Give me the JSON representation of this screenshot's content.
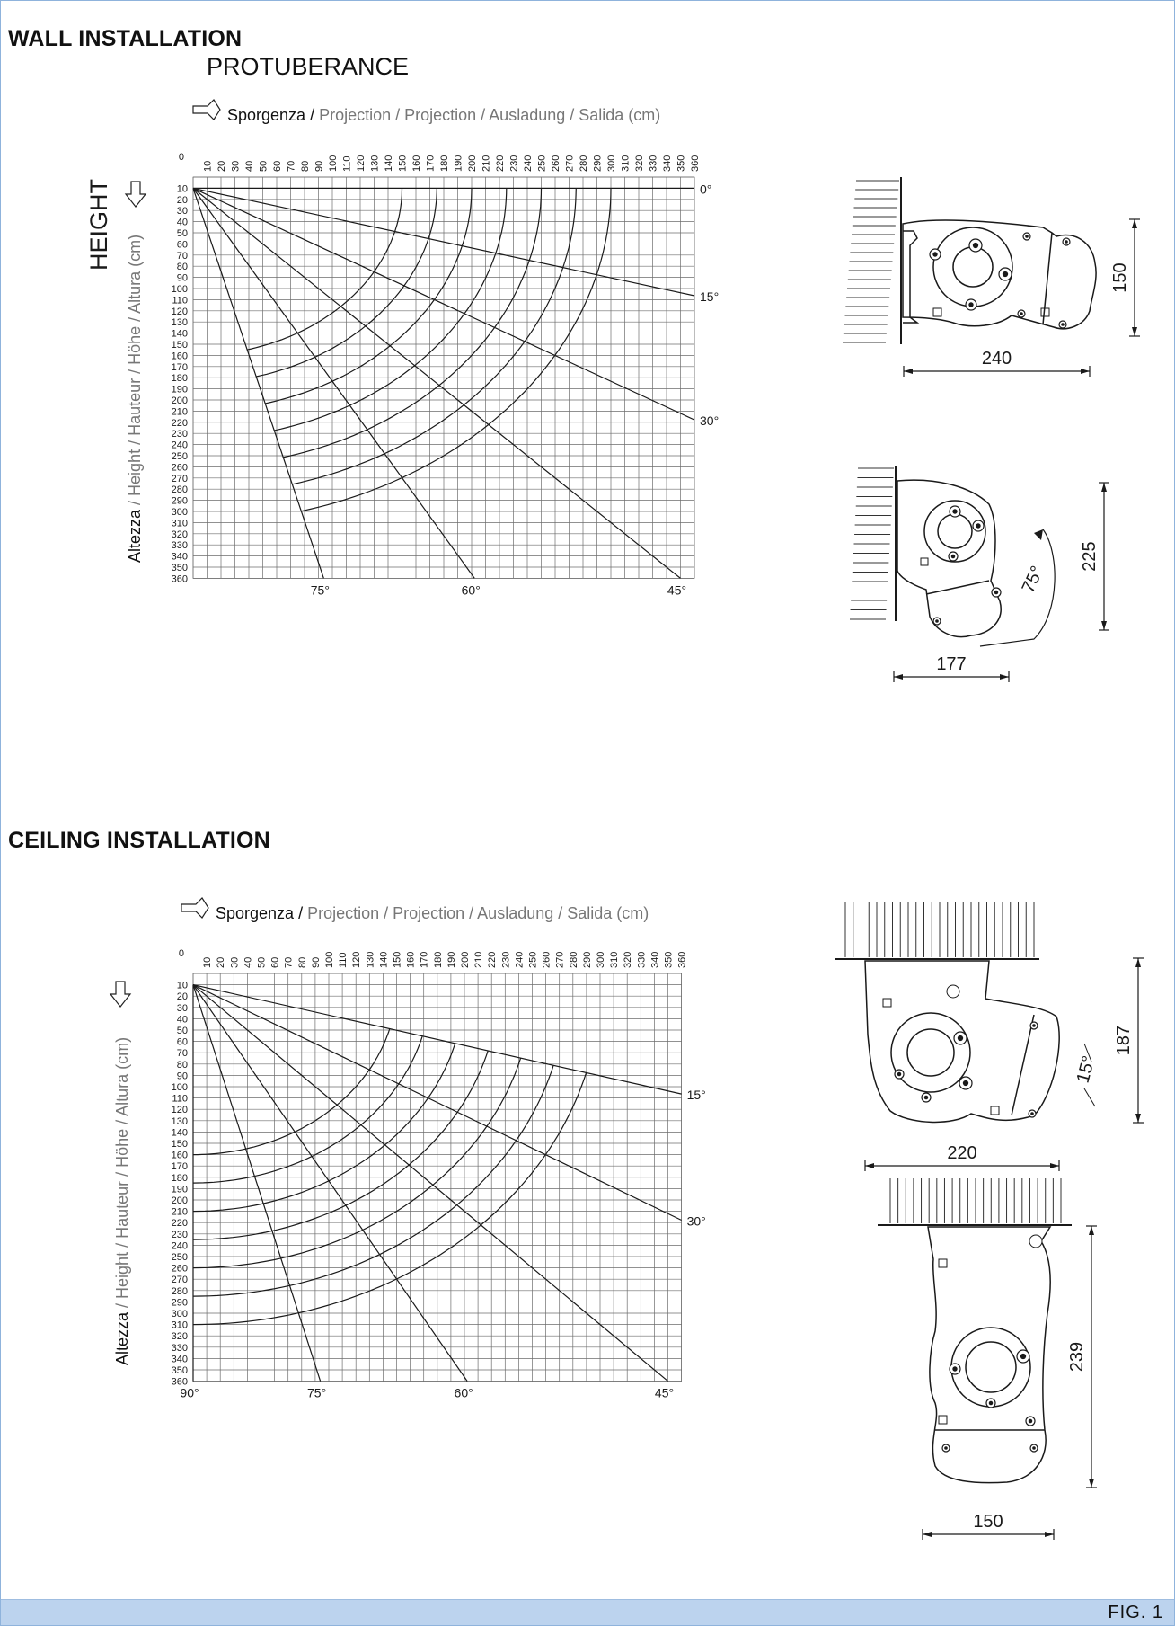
{
  "title": "WALL INSTALLATION",
  "subtitle": "PROTUBERANCE",
  "height_word": "HEIGHT",
  "ceiling_title": "CEILING INSTALLATION",
  "fig_label": "FIG. 1",
  "projection_axis": {
    "lead": "Sporgenza /",
    "rest": " Projection / Projection / Ausladung / Salida (cm)"
  },
  "height_axis": {
    "lead": "Altezza",
    "rest": " / Height / Hauteur / Höhe / Altura (cm)"
  },
  "origin_label": "0",
  "ticks": [
    "10",
    "20",
    "30",
    "40",
    "50",
    "60",
    "70",
    "80",
    "90",
    "100",
    "110",
    "120",
    "130",
    "140",
    "150",
    "160",
    "170",
    "180",
    "190",
    "200",
    "210",
    "220",
    "230",
    "240",
    "250",
    "260",
    "270",
    "280",
    "290",
    "300",
    "310",
    "320",
    "330",
    "340",
    "350",
    "360"
  ],
  "wall_chart": {
    "ray_angles_deg": [
      0,
      15,
      30,
      45,
      60,
      75
    ],
    "ray_labels": [
      "0°",
      "15°",
      "30°",
      "45°",
      "60°",
      "75°"
    ],
    "arc_radii_cm": [
      150,
      175,
      200,
      225,
      250,
      275,
      300
    ],
    "arc_angle_range_deg": [
      0,
      75
    ]
  },
  "ceiling_chart": {
    "ray_angles_deg": [
      15,
      30,
      45,
      60,
      75,
      90
    ],
    "ray_labels": [
      "15°",
      "30°",
      "45°",
      "60°",
      "75°",
      "90°"
    ],
    "arc_radii_cm": [
      150,
      175,
      200,
      225,
      250,
      275,
      300
    ],
    "arc_angle_range_deg": [
      15,
      90
    ]
  },
  "dimensions": {
    "wall_top": {
      "width": "240",
      "height": "150"
    },
    "wall_bottom": {
      "width": "177",
      "height": "225",
      "angle": "75°"
    },
    "ceiling_top": {
      "width": "220",
      "height": "187",
      "angle": "15°"
    },
    "ceiling_bottom": {
      "width": "150",
      "height": "239"
    }
  },
  "colors": {
    "grid": "#6d6d6d",
    "curve": "#1a1a1a",
    "gray_text": "#777777",
    "footer": "#bcd3ee"
  }
}
